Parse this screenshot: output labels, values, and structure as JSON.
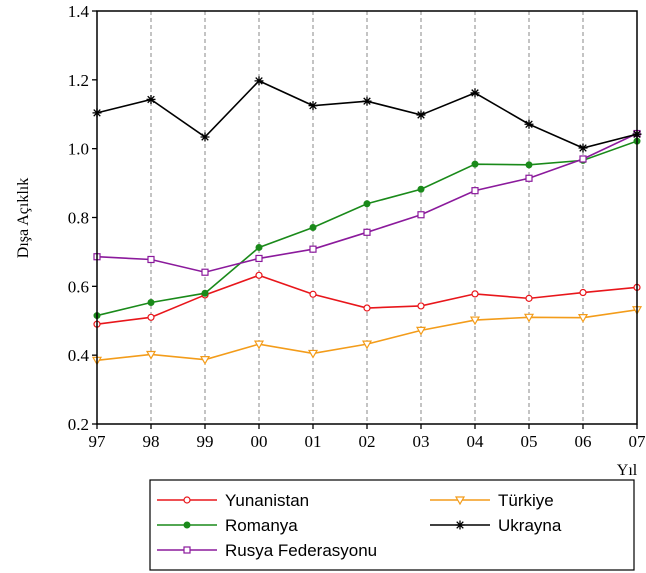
{
  "chart_data": {
    "type": "line",
    "ylabel": "Dışa Açıklık",
    "xlabel": "Yıl",
    "categories": [
      "97",
      "98",
      "99",
      "00",
      "01",
      "02",
      "03",
      "04",
      "05",
      "06",
      "07"
    ],
    "ylim": [
      0.2,
      1.4
    ],
    "yticks": [
      "0.2",
      "0.4",
      "0.6",
      "0.8",
      "1.0",
      "1.2",
      "1.4"
    ],
    "grid": "vertical dashed",
    "legend_placement": "bottom",
    "series": [
      {
        "name": "Yunanistan",
        "color": "#e8161b",
        "marker": "circle",
        "values": [
          0.49,
          0.51,
          0.575,
          0.632,
          0.577,
          0.537,
          0.543,
          0.578,
          0.565,
          0.582,
          0.597
        ]
      },
      {
        "name": "Romanya",
        "color": "#1a8a1a",
        "marker": "filled-circle",
        "values": [
          0.515,
          0.553,
          0.58,
          0.713,
          0.771,
          0.84,
          0.882,
          0.955,
          0.953,
          0.966,
          1.022
        ]
      },
      {
        "name": "Rusya Federasyonu",
        "color": "#8b1a9c",
        "marker": "square",
        "values": [
          0.686,
          0.678,
          0.641,
          0.681,
          0.708,
          0.757,
          0.808,
          0.878,
          0.914,
          0.97,
          1.044
        ]
      },
      {
        "name": "Türkiye",
        "color": "#f39c1a",
        "marker": "triangle-down",
        "values": [
          0.385,
          0.402,
          0.387,
          0.432,
          0.405,
          0.432,
          0.472,
          0.502,
          0.51,
          0.509,
          0.532
        ]
      },
      {
        "name": "Ukrayna",
        "color": "#000000",
        "marker": "star",
        "values": [
          1.104,
          1.143,
          1.034,
          1.197,
          1.125,
          1.138,
          1.098,
          1.162,
          1.071,
          1.002,
          1.042
        ]
      }
    ]
  }
}
